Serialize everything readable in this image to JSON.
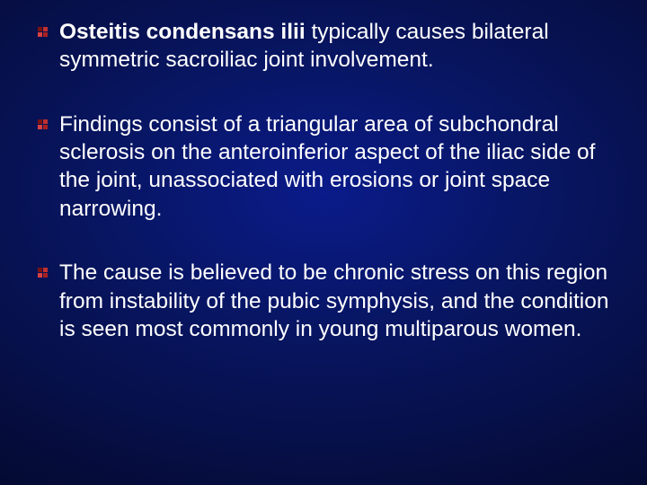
{
  "slide": {
    "background": {
      "center_color": "#0a1b8a",
      "mid_color": "#081560",
      "outer_color": "#050c3a",
      "corner_color": "#020515"
    },
    "bullet_colors": {
      "tl": "#7a1212",
      "tr": "#c03030",
      "bl": "#d84040",
      "br": "#a82020"
    },
    "text_color": "#ffffff",
    "font_size": 24.5,
    "items": [
      {
        "runs": [
          {
            "text": "Osteitis condensans ilii ",
            "bold": true
          },
          {
            "text": "typically causes bilateral symmetric sacroiliac joint involvement.",
            "bold": false
          }
        ]
      },
      {
        "runs": [
          {
            "text": "Findings consist of a triangular area of subchondral sclerosis on the anteroinferior aspect of the iliac side of the joint, unassociated with erosions or joint space narrowing.",
            "bold": false
          }
        ]
      },
      {
        "runs": [
          {
            "text": "The cause is believed to be chronic stress on this region from instability of the pubic symphysis, and the condition is seen most commonly in young multiparous women.",
            "bold": false
          }
        ]
      }
    ]
  }
}
